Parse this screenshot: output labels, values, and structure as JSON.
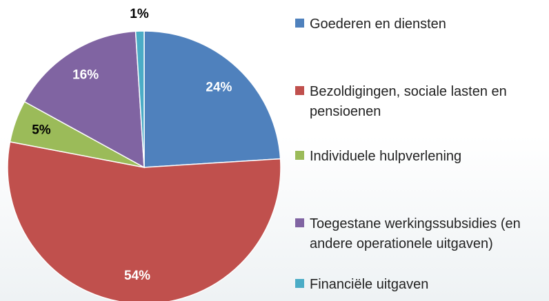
{
  "chart_data": {
    "type": "pie",
    "categories": [
      "Goederen en diensten",
      "Bezoldigingen, sociale lasten en pensioenen",
      "Individuele hulpverlening",
      "Toegestane werkingssubsidies (en andere operationele uitgaven)",
      "Financiële uitgaven"
    ],
    "values": [
      24,
      54,
      5,
      16,
      1
    ],
    "value_labels": [
      "24%",
      "54%",
      "5%",
      "16%",
      "1%"
    ],
    "colors": [
      "#4f81bd",
      "#c0504d",
      "#9bbb59",
      "#8064a2",
      "#4bacc6"
    ],
    "legend": "right"
  }
}
